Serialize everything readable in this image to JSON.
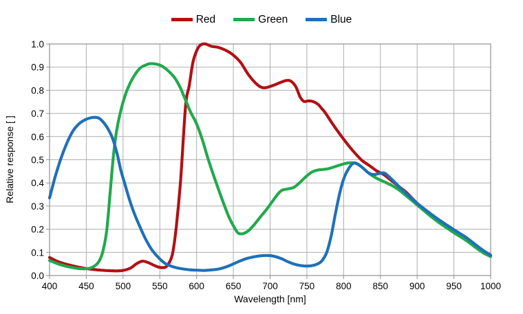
{
  "figure": {
    "background": "#ffffff",
    "grid_color": "#adadad",
    "border_color": "#8f8f8f"
  },
  "chart_data": {
    "type": "line",
    "title": "",
    "xlabel": "Wavelength [nm]",
    "ylabel": "Relative response [ ]",
    "xlim": [
      400,
      1000
    ],
    "ylim": [
      0.0,
      1.0
    ],
    "xticks": [
      400,
      450,
      500,
      550,
      600,
      650,
      700,
      750,
      800,
      850,
      900,
      950,
      1000
    ],
    "yticks": [
      0.0,
      0.1,
      0.2,
      0.3,
      0.4,
      0.5,
      0.6,
      0.7,
      0.8,
      0.9,
      1.0
    ],
    "grid": true,
    "legend_position": "top-center",
    "series": [
      {
        "name": "Red",
        "color": "#b11015",
        "points": [
          [
            400,
            0.078
          ],
          [
            410,
            0.062
          ],
          [
            420,
            0.051
          ],
          [
            430,
            0.043
          ],
          [
            440,
            0.036
          ],
          [
            450,
            0.03
          ],
          [
            460,
            0.026
          ],
          [
            470,
            0.023
          ],
          [
            480,
            0.021
          ],
          [
            490,
            0.02
          ],
          [
            500,
            0.022
          ],
          [
            510,
            0.032
          ],
          [
            518,
            0.05
          ],
          [
            526,
            0.062
          ],
          [
            534,
            0.056
          ],
          [
            545,
            0.04
          ],
          [
            553,
            0.034
          ],
          [
            560,
            0.042
          ],
          [
            567,
            0.09
          ],
          [
            572,
            0.2
          ],
          [
            578,
            0.4
          ],
          [
            585,
            0.73
          ],
          [
            590,
            0.82
          ],
          [
            595,
            0.92
          ],
          [
            600,
            0.97
          ],
          [
            605,
            0.995
          ],
          [
            612,
            1.0
          ],
          [
            620,
            0.99
          ],
          [
            630,
            0.985
          ],
          [
            640,
            0.972
          ],
          [
            650,
            0.952
          ],
          [
            660,
            0.92
          ],
          [
            670,
            0.87
          ],
          [
            680,
            0.832
          ],
          [
            688,
            0.813
          ],
          [
            695,
            0.812
          ],
          [
            705,
            0.822
          ],
          [
            715,
            0.835
          ],
          [
            722,
            0.842
          ],
          [
            728,
            0.84
          ],
          [
            735,
            0.815
          ],
          [
            741,
            0.77
          ],
          [
            746,
            0.752
          ],
          [
            752,
            0.754
          ],
          [
            758,
            0.752
          ],
          [
            765,
            0.74
          ],
          [
            770,
            0.722
          ],
          [
            775,
            0.703
          ],
          [
            785,
            0.655
          ],
          [
            795,
            0.61
          ],
          [
            805,
            0.568
          ],
          [
            815,
            0.53
          ],
          [
            825,
            0.497
          ],
          [
            835,
            0.475
          ],
          [
            845,
            0.452
          ],
          [
            855,
            0.435
          ],
          [
            865,
            0.41
          ],
          [
            875,
            0.385
          ],
          [
            885,
            0.36
          ],
          [
            900,
            0.312
          ],
          [
            915,
            0.272
          ],
          [
            930,
            0.235
          ],
          [
            950,
            0.192
          ],
          [
            965,
            0.162
          ],
          [
            980,
            0.125
          ],
          [
            990,
            0.102
          ],
          [
            1000,
            0.085
          ]
        ]
      },
      {
        "name": "Green",
        "color": "#21a94e",
        "points": [
          [
            400,
            0.065
          ],
          [
            410,
            0.052
          ],
          [
            420,
            0.042
          ],
          [
            430,
            0.035
          ],
          [
            440,
            0.03
          ],
          [
            448,
            0.029
          ],
          [
            455,
            0.032
          ],
          [
            462,
            0.043
          ],
          [
            468,
            0.065
          ],
          [
            473,
            0.11
          ],
          [
            478,
            0.2
          ],
          [
            483,
            0.38
          ],
          [
            487,
            0.52
          ],
          [
            491,
            0.62
          ],
          [
            496,
            0.7
          ],
          [
            502,
            0.77
          ],
          [
            508,
            0.82
          ],
          [
            515,
            0.862
          ],
          [
            523,
            0.895
          ],
          [
            530,
            0.908
          ],
          [
            537,
            0.915
          ],
          [
            545,
            0.913
          ],
          [
            552,
            0.906
          ],
          [
            560,
            0.888
          ],
          [
            570,
            0.855
          ],
          [
            578,
            0.81
          ],
          [
            586,
            0.75
          ],
          [
            592,
            0.705
          ],
          [
            600,
            0.655
          ],
          [
            608,
            0.585
          ],
          [
            616,
            0.5
          ],
          [
            625,
            0.415
          ],
          [
            634,
            0.335
          ],
          [
            643,
            0.26
          ],
          [
            650,
            0.215
          ],
          [
            656,
            0.185
          ],
          [
            662,
            0.18
          ],
          [
            670,
            0.192
          ],
          [
            678,
            0.218
          ],
          [
            686,
            0.25
          ],
          [
            695,
            0.285
          ],
          [
            702,
            0.315
          ],
          [
            710,
            0.35
          ],
          [
            716,
            0.368
          ],
          [
            724,
            0.374
          ],
          [
            732,
            0.38
          ],
          [
            740,
            0.4
          ],
          [
            748,
            0.425
          ],
          [
            756,
            0.445
          ],
          [
            764,
            0.455
          ],
          [
            772,
            0.458
          ],
          [
            780,
            0.462
          ],
          [
            790,
            0.472
          ],
          [
            800,
            0.482
          ],
          [
            808,
            0.487
          ],
          [
            816,
            0.485
          ],
          [
            825,
            0.468
          ],
          [
            835,
            0.44
          ],
          [
            845,
            0.42
          ],
          [
            855,
            0.405
          ],
          [
            865,
            0.39
          ],
          [
            875,
            0.37
          ],
          [
            885,
            0.345
          ],
          [
            900,
            0.305
          ],
          [
            915,
            0.265
          ],
          [
            930,
            0.228
          ],
          [
            950,
            0.185
          ],
          [
            965,
            0.155
          ],
          [
            980,
            0.12
          ],
          [
            990,
            0.098
          ],
          [
            1000,
            0.082
          ]
        ]
      },
      {
        "name": "Blue",
        "color": "#1f70b8",
        "points": [
          [
            400,
            0.335
          ],
          [
            408,
            0.43
          ],
          [
            416,
            0.51
          ],
          [
            424,
            0.575
          ],
          [
            432,
            0.625
          ],
          [
            440,
            0.655
          ],
          [
            448,
            0.672
          ],
          [
            456,
            0.681
          ],
          [
            462,
            0.683
          ],
          [
            468,
            0.678
          ],
          [
            475,
            0.655
          ],
          [
            481,
            0.625
          ],
          [
            486,
            0.59
          ],
          [
            492,
            0.525
          ],
          [
            497,
            0.455
          ],
          [
            502,
            0.4
          ],
          [
            508,
            0.335
          ],
          [
            515,
            0.27
          ],
          [
            523,
            0.21
          ],
          [
            531,
            0.155
          ],
          [
            539,
            0.112
          ],
          [
            548,
            0.078
          ],
          [
            556,
            0.055
          ],
          [
            564,
            0.042
          ],
          [
            572,
            0.034
          ],
          [
            580,
            0.029
          ],
          [
            590,
            0.025
          ],
          [
            600,
            0.023
          ],
          [
            610,
            0.022
          ],
          [
            620,
            0.024
          ],
          [
            630,
            0.028
          ],
          [
            640,
            0.037
          ],
          [
            650,
            0.05
          ],
          [
            660,
            0.064
          ],
          [
            670,
            0.075
          ],
          [
            680,
            0.082
          ],
          [
            690,
            0.086
          ],
          [
            700,
            0.086
          ],
          [
            708,
            0.081
          ],
          [
            716,
            0.072
          ],
          [
            724,
            0.06
          ],
          [
            732,
            0.05
          ],
          [
            740,
            0.044
          ],
          [
            748,
            0.041
          ],
          [
            756,
            0.042
          ],
          [
            763,
            0.048
          ],
          [
            770,
            0.062
          ],
          [
            777,
            0.1
          ],
          [
            783,
            0.17
          ],
          [
            789,
            0.27
          ],
          [
            795,
            0.36
          ],
          [
            801,
            0.425
          ],
          [
            808,
            0.468
          ],
          [
            814,
            0.486
          ],
          [
            820,
            0.48
          ],
          [
            827,
            0.462
          ],
          [
            834,
            0.443
          ],
          [
            841,
            0.436
          ],
          [
            848,
            0.44
          ],
          [
            855,
            0.443
          ],
          [
            860,
            0.432
          ],
          [
            868,
            0.408
          ],
          [
            876,
            0.382
          ],
          [
            885,
            0.355
          ],
          [
            900,
            0.312
          ],
          [
            915,
            0.275
          ],
          [
            930,
            0.24
          ],
          [
            950,
            0.198
          ],
          [
            965,
            0.168
          ],
          [
            980,
            0.132
          ],
          [
            990,
            0.108
          ],
          [
            1000,
            0.088
          ]
        ]
      }
    ]
  }
}
